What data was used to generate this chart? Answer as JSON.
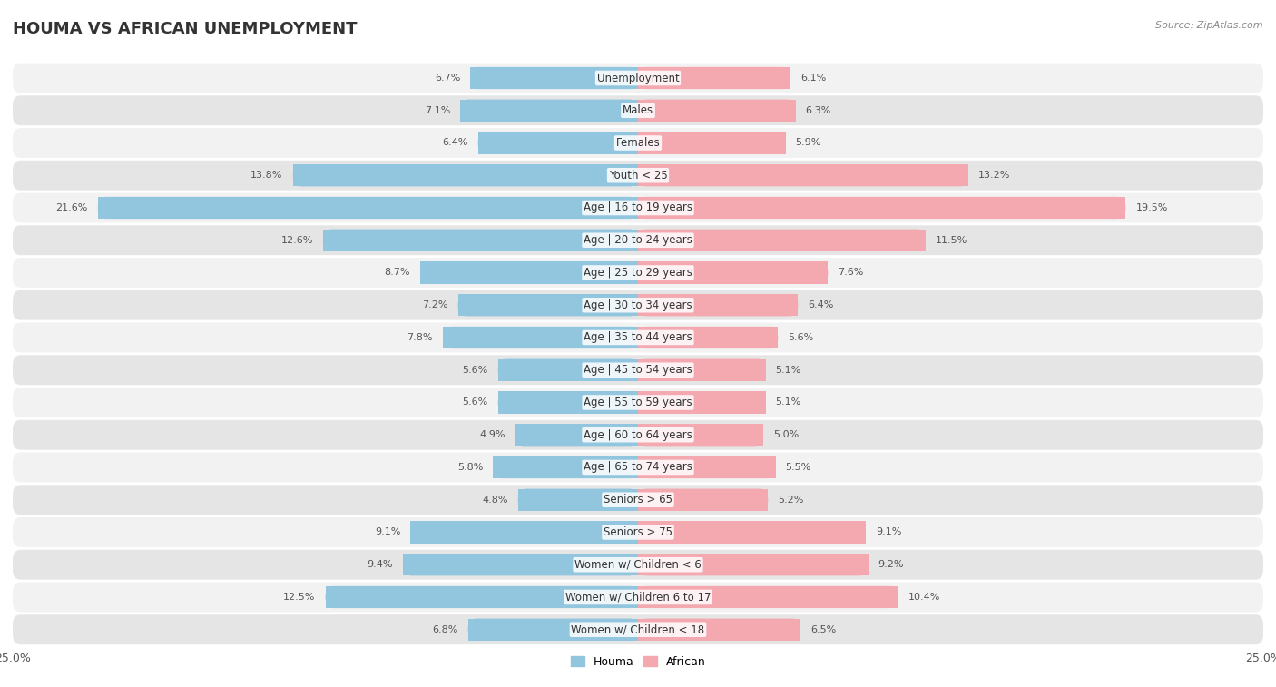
{
  "title": "HOUMA VS AFRICAN UNEMPLOYMENT",
  "source": "Source: ZipAtlas.com",
  "categories": [
    "Unemployment",
    "Males",
    "Females",
    "Youth < 25",
    "Age | 16 to 19 years",
    "Age | 20 to 24 years",
    "Age | 25 to 29 years",
    "Age | 30 to 34 years",
    "Age | 35 to 44 years",
    "Age | 45 to 54 years",
    "Age | 55 to 59 years",
    "Age | 60 to 64 years",
    "Age | 65 to 74 years",
    "Seniors > 65",
    "Seniors > 75",
    "Women w/ Children < 6",
    "Women w/ Children 6 to 17",
    "Women w/ Children < 18"
  ],
  "houma_values": [
    6.7,
    7.1,
    6.4,
    13.8,
    21.6,
    12.6,
    8.7,
    7.2,
    7.8,
    5.6,
    5.6,
    4.9,
    5.8,
    4.8,
    9.1,
    9.4,
    12.5,
    6.8
  ],
  "african_values": [
    6.1,
    6.3,
    5.9,
    13.2,
    19.5,
    11.5,
    7.6,
    6.4,
    5.6,
    5.1,
    5.1,
    5.0,
    5.5,
    5.2,
    9.1,
    9.2,
    10.4,
    6.5
  ],
  "houma_color": "#92c5de",
  "african_color": "#f4a9b0",
  "houma_highlight": "#5b9fc9",
  "african_highlight": "#e8697a",
  "houma_label": "Houma",
  "african_label": "African",
  "xlim": 25.0,
  "bar_height": 0.68,
  "row_bg_light": "#f2f2f2",
  "row_bg_dark": "#e5e5e5",
  "title_fontsize": 13,
  "label_fontsize": 8.5,
  "value_fontsize": 8.0,
  "source_fontsize": 8
}
